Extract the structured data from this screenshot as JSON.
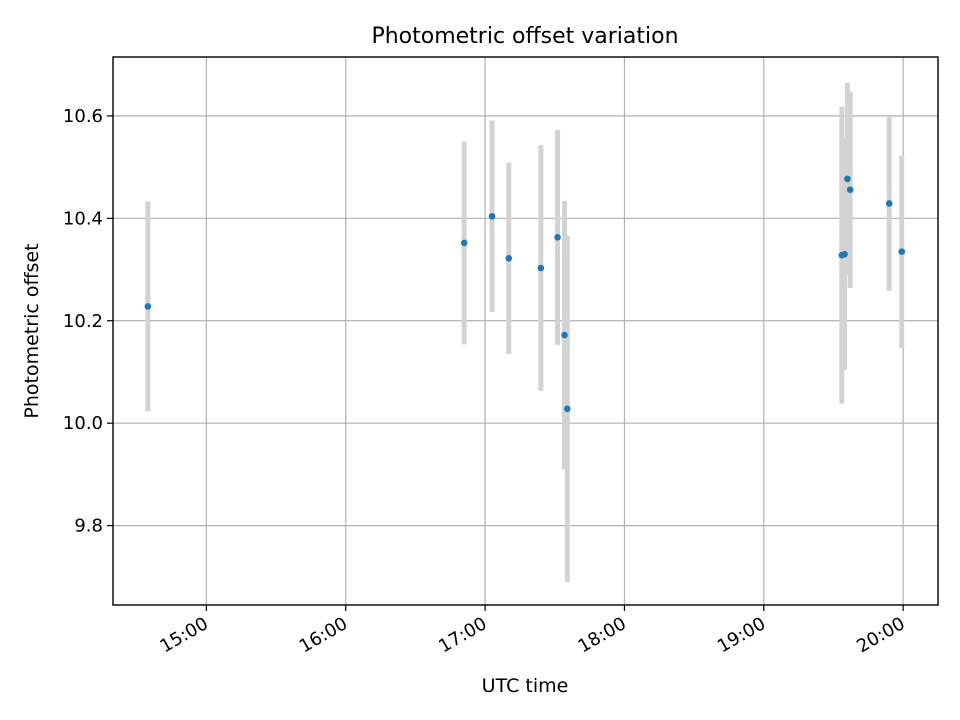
{
  "chart_data": {
    "type": "scatter",
    "title": "Photometric offset variation",
    "xlabel": "UTC time",
    "ylabel": "Photometric offset",
    "grid": true,
    "x_unit": "hours (UTC)",
    "xlim": [
      14.33,
      20.25
    ],
    "ylim": [
      9.645,
      10.715
    ],
    "x_ticks": [
      {
        "value": 15,
        "label": "15:00"
      },
      {
        "value": 16,
        "label": "16:00"
      },
      {
        "value": 17,
        "label": "17:00"
      },
      {
        "value": 18,
        "label": "18:00"
      },
      {
        "value": 19,
        "label": "19:00"
      },
      {
        "value": 20,
        "label": "20:00"
      }
    ],
    "y_ticks": [
      {
        "value": 9.8,
        "label": "9.8"
      },
      {
        "value": 10.0,
        "label": "10.0"
      },
      {
        "value": 10.2,
        "label": "10.2"
      },
      {
        "value": 10.4,
        "label": "10.4"
      },
      {
        "value": 10.6,
        "label": "10.6"
      }
    ],
    "series": [
      {
        "name": "Photometric offset",
        "color": "#1f77b4",
        "errorbar_color": "#d3d3d3",
        "points": [
          {
            "x": 14.58,
            "y": 10.228,
            "err": 0.205
          },
          {
            "x": 16.85,
            "y": 10.352,
            "err": 0.198
          },
          {
            "x": 17.05,
            "y": 10.404,
            "err": 0.187
          },
          {
            "x": 17.17,
            "y": 10.322,
            "err": 0.187
          },
          {
            "x": 17.4,
            "y": 10.303,
            "err": 0.24
          },
          {
            "x": 17.52,
            "y": 10.363,
            "err": 0.21
          },
          {
            "x": 17.57,
            "y": 10.172,
            "err": 0.262
          },
          {
            "x": 17.59,
            "y": 10.028,
            "err": 0.338
          },
          {
            "x": 19.56,
            "y": 10.328,
            "err": 0.29
          },
          {
            "x": 19.58,
            "y": 10.33,
            "err": 0.226
          },
          {
            "x": 19.6,
            "y": 10.477,
            "err": 0.188
          },
          {
            "x": 19.62,
            "y": 10.456,
            "err": 0.192
          },
          {
            "x": 19.9,
            "y": 10.429,
            "err": 0.171
          },
          {
            "x": 19.99,
            "y": 10.335,
            "err": 0.188
          }
        ]
      }
    ]
  }
}
